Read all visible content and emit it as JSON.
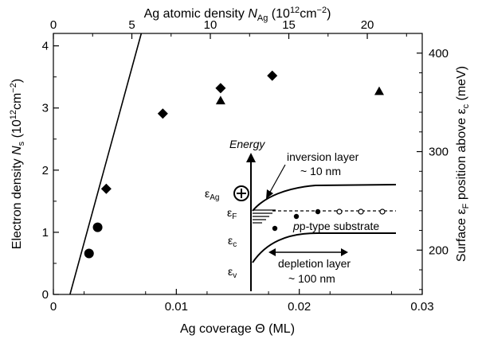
{
  "chart_data": {
    "type": "scatter",
    "title": "",
    "bottom_axis": {
      "label": "Ag coverage Θ (ML)",
      "range": [
        0,
        0.03
      ],
      "ticks": [
        0,
        0.01,
        0.02,
        0.03
      ],
      "tick_labels": [
        "0",
        "0.01",
        "0.02",
        "0.03"
      ]
    },
    "top_axis": {
      "label_main": "Ag atomic density ",
      "label_N": "N",
      "label_sub": "Ag",
      "label_unit": " (10",
      "label_sup1": "12",
      "label_cm": "cm",
      "label_sup2": "−2",
      "label_close": ")",
      "range": [
        0,
        23.5
      ],
      "ticks": [
        0,
        5,
        10,
        15,
        20
      ],
      "tick_labels": [
        "0",
        "5",
        "10",
        "15",
        "20"
      ]
    },
    "left_axis": {
      "label_main": "Electron density ",
      "label_N": "N",
      "label_sub": "s",
      "label_unit": " (10",
      "label_sup1": "12",
      "label_cm": "cm",
      "label_sup2": "−2",
      "label_close": ")",
      "range": [
        0,
        4.2
      ],
      "ticks": [
        0,
        1,
        2,
        3,
        4
      ],
      "tick_labels": [
        "0",
        "1",
        "2",
        "3",
        "4"
      ]
    },
    "right_axis": {
      "label_main": "Surface ε",
      "label_sub1": "F",
      "label_mid": " position above ε",
      "label_sub2": "c",
      "label_unit": " (meV)",
      "range": [
        155,
        420
      ],
      "ticks": [
        200,
        300,
        400
      ],
      "tick_labels": [
        "200",
        "300",
        "400"
      ]
    },
    "series": [
      {
        "marker": "circle",
        "x": [
          0.0029,
          0.0036
        ],
        "y": [
          0.66,
          1.08
        ]
      },
      {
        "marker": "diamond",
        "x": [
          0.0043,
          0.0089,
          0.0136,
          0.0178
        ],
        "y": [
          1.7,
          2.91,
          3.32,
          3.52
        ]
      },
      {
        "marker": "triangle",
        "x": [
          0.0136,
          0.0265
        ],
        "y": [
          3.12,
          3.27
        ]
      }
    ],
    "line": {
      "x": [
        0.00135,
        0.00715
      ],
      "y": [
        0,
        4.2
      ]
    }
  },
  "inset": {
    "energy_label": "Energy",
    "inversion_label": "inversion layer",
    "inversion_size": "~ 10 nm",
    "substrate_label": "p-type substrate",
    "depletion_label": "depletion layer",
    "depletion_size": "~ 100 nm",
    "eps": "ε",
    "sub_ag": "Ag",
    "sub_f": "F",
    "sub_c": "c",
    "sub_v": "v"
  }
}
